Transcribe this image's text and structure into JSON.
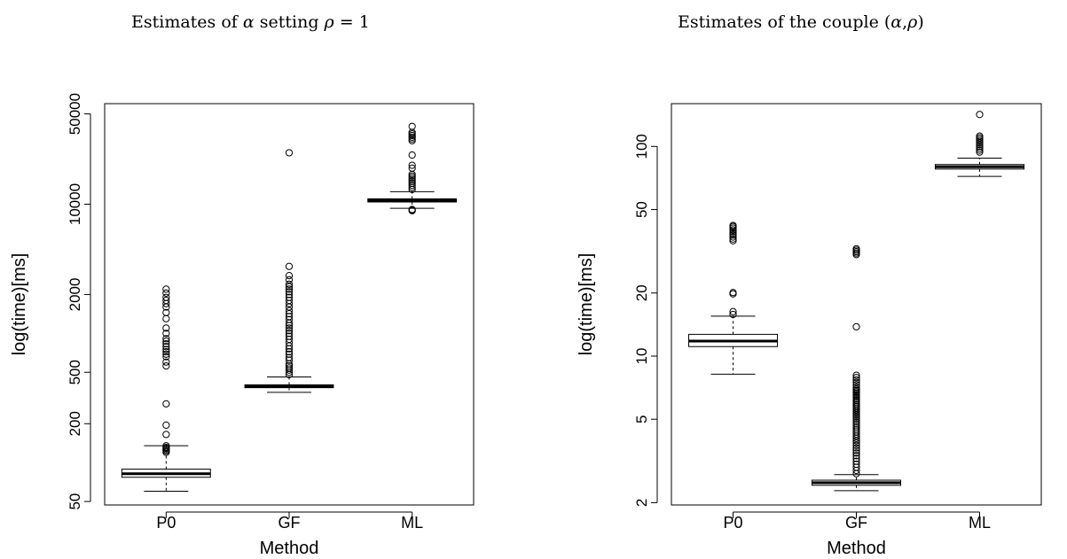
{
  "chart_data": [
    {
      "type": "boxplot",
      "title_parts": [
        "Estimates of ",
        "α",
        " setting ",
        "ρ",
        " = 1"
      ],
      "xlabel": "Method",
      "ylabel": "log(time)[ms]",
      "categories": [
        "P0",
        "GF",
        "ML"
      ],
      "y_scale": "log",
      "ylim": [
        47,
        60000
      ],
      "yticks": [
        50,
        200,
        500,
        2000,
        10000,
        50000
      ],
      "grid": false,
      "boxes": [
        {
          "name": "P0",
          "whisker_low": 60,
          "q1": 77,
          "median": 82,
          "q3": 89,
          "whisker_high": 135,
          "outliers": [
            120,
            123,
            126,
            129,
            131,
            135,
            165,
            195,
            285,
            560,
            600,
            660,
            690,
            720,
            750,
            790,
            830,
            870,
            910,
            1000,
            1100,
            1300,
            1450,
            1600,
            1700,
            1800,
            1900,
            2050,
            2200
          ]
        },
        {
          "name": "GF",
          "whisker_low": 350,
          "q1": 380,
          "median": 390,
          "q3": 400,
          "whisker_high": 460,
          "outliers": [
            480,
            500,
            520,
            540,
            560,
            580,
            620,
            650,
            690,
            720,
            760,
            800,
            850,
            900,
            950,
            1000,
            1050,
            1100,
            1150,
            1200,
            1280,
            1350,
            1420,
            1500,
            1600,
            1700,
            1800,
            1900,
            2000,
            2100,
            2200,
            2300,
            2400,
            2600,
            2800,
            3300,
            25000
          ]
        },
        {
          "name": "ML",
          "whisker_low": 9300,
          "q1": 10400,
          "median": 10700,
          "q3": 11000,
          "whisker_high": 12500,
          "outliers": [
            8900,
            9000,
            9100,
            13000,
            13500,
            14000,
            14500,
            15000,
            15500,
            16000,
            16500,
            17000,
            19000,
            20000,
            24000,
            31000,
            32000,
            33000,
            34000,
            35000,
            36000,
            40000
          ]
        }
      ]
    },
    {
      "type": "boxplot",
      "title_parts": [
        "Estimates of the couple (",
        "α",
        ",",
        "ρ",
        ")"
      ],
      "xlabel": "Method",
      "ylabel": "log(time)[ms]",
      "categories": [
        "P0",
        "GF",
        "ML"
      ],
      "y_scale": "log",
      "ylim": [
        1.95,
        160
      ],
      "yticks": [
        2,
        5,
        10,
        20,
        50,
        100
      ],
      "grid": false,
      "boxes": [
        {
          "name": "P0",
          "whisker_low": 8.2,
          "q1": 11.1,
          "median": 11.8,
          "q3": 12.7,
          "whisker_high": 15.5,
          "outliers": [
            15.8,
            16.3,
            19.8,
            20.1,
            35.5,
            36.2,
            37,
            37.8,
            38.5,
            39.3,
            40,
            40.8,
            41.5,
            42
          ]
        },
        {
          "name": "GF",
          "whisker_low": 2.28,
          "q1": 2.42,
          "median": 2.49,
          "q3": 2.56,
          "whisker_high": 2.72,
          "outliers": [
            2.75,
            2.85,
            2.95,
            3.05,
            3.15,
            3.25,
            3.35,
            3.45,
            3.55,
            3.65,
            3.75,
            3.85,
            3.95,
            4.05,
            4.15,
            4.25,
            4.35,
            4.45,
            4.55,
            4.65,
            4.75,
            4.85,
            4.95,
            5.05,
            5.15,
            5.25,
            5.35,
            5.45,
            5.55,
            5.65,
            5.75,
            5.85,
            5.95,
            6.05,
            6.15,
            6.25,
            6.35,
            6.45,
            6.55,
            6.65,
            6.75,
            6.85,
            6.95,
            7.1,
            7.3,
            7.5,
            7.7,
            7.9,
            8.1,
            13.8,
            30.5,
            31,
            31.5,
            32,
            32.5
          ]
        },
        {
          "name": "ML",
          "whisker_low": 72,
          "q1": 78,
          "median": 80,
          "q3": 82,
          "whisker_high": 88,
          "outliers": [
            94,
            96,
            98,
            100,
            102,
            104,
            106,
            108,
            110,
            112,
            142
          ]
        }
      ]
    }
  ]
}
